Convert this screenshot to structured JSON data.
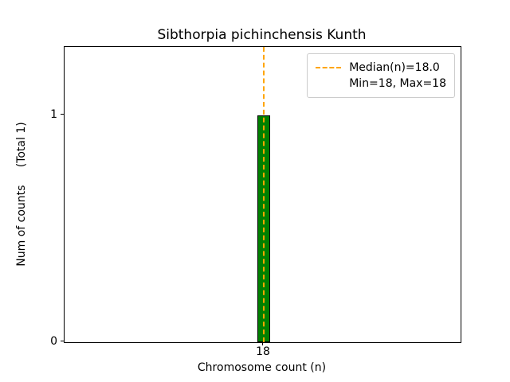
{
  "chart_data": {
    "type": "bar",
    "title": "Sibthorpia pichinchensis Kunth",
    "xlabel": "Chromosome count (n)",
    "ylabel": "Num of counts     (Total 1)",
    "categories": [
      "18"
    ],
    "values": [
      1
    ],
    "total_counts": 1,
    "ylim": [
      0,
      1.3
    ],
    "ytick_labels": [
      "0",
      "1"
    ],
    "grid": false,
    "bar_color": "#008000",
    "bar_edgecolor": "#000000",
    "median": {
      "value": 18.0,
      "color": "#FFA500",
      "style": "dashed"
    },
    "min": 18,
    "max": 18,
    "legend": {
      "position": "upper right",
      "entries": [
        "Median(n)=18.0",
        "Min=18, Max=18"
      ]
    }
  }
}
